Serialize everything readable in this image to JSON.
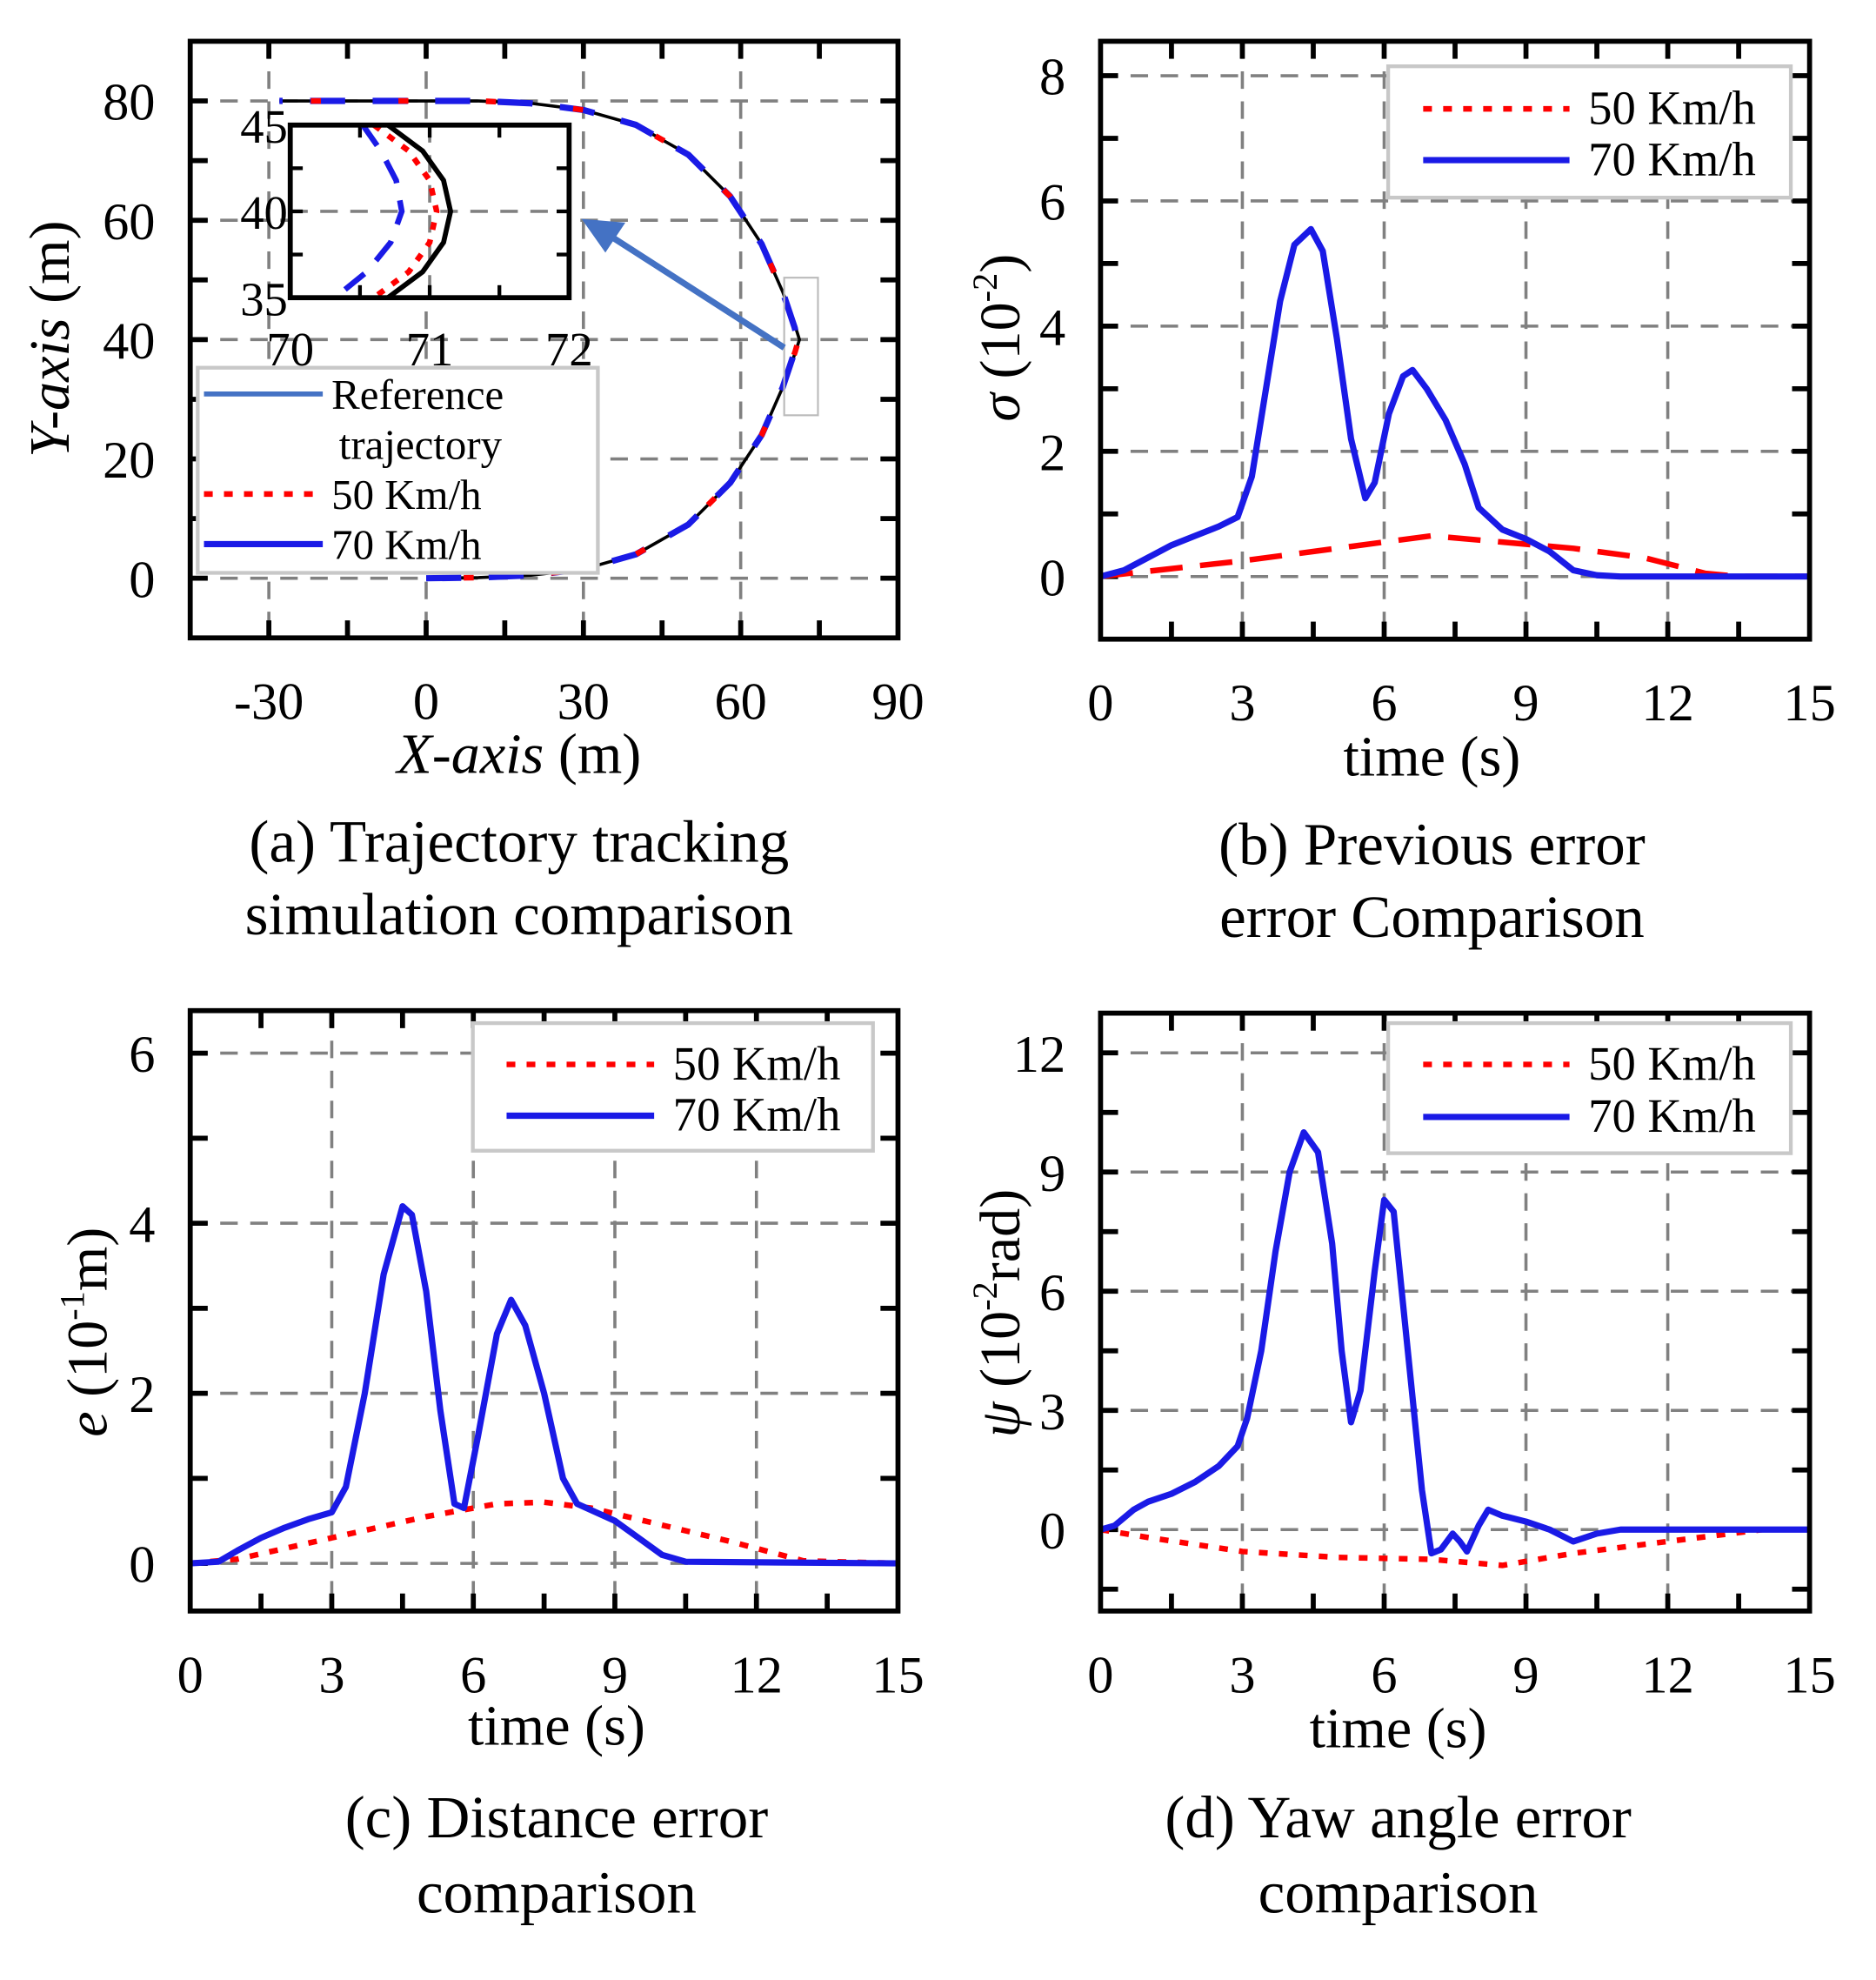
{
  "colors": {
    "red": "#ff0000",
    "blue": "#1a1ae6",
    "reference": "#000000",
    "ref_legend": "#4472c4",
    "grid": "#808080",
    "arrow": "#4472c4"
  },
  "chart_data": [
    {
      "type": "line",
      "id": "a",
      "caption": [
        "(a) Trajectory tracking",
        "simulation comparison"
      ],
      "xlabel": {
        "italic": "X-axis",
        "rest": " (m)"
      },
      "ylabel": {
        "italic": "Y-axis",
        "rest": " (m)"
      },
      "xlim": [
        -45,
        90
      ],
      "ylim": [
        -10,
        90
      ],
      "xticks": [
        -30,
        0,
        30,
        60,
        90
      ],
      "yticks": [
        0,
        20,
        40,
        60,
        80
      ],
      "xminor": 15,
      "yminor": 10,
      "grid": true,
      "legend": {
        "placement": "center-left",
        "entries": [
          {
            "label": [
              "Reference",
              "trajectory"
            ],
            "style": "ref"
          },
          {
            "label": [
              "50 Km/h"
            ],
            "style": "red"
          },
          {
            "label": [
              "70 Km/h"
            ],
            "style": "blue"
          }
        ]
      },
      "series": [
        {
          "name": "Reference trajectory",
          "style": "ref",
          "x": [
            0,
            10,
            20,
            30,
            40,
            50,
            58,
            64,
            68,
            70.5,
            71.2,
            70.5,
            68,
            64,
            58,
            50,
            40,
            30,
            20,
            10,
            0,
            -28
          ],
          "y": [
            0,
            0.1,
            0.5,
            1.5,
            4,
            9,
            16,
            24,
            32,
            38,
            40,
            42,
            48,
            56,
            64,
            71,
            76,
            78.5,
            79.6,
            80,
            80,
            80
          ]
        },
        {
          "name": "70 Km/h",
          "style": "blue",
          "x": [
            0,
            10,
            20,
            30,
            40,
            50,
            58,
            64,
            68,
            70.3,
            70.8,
            70.3,
            68,
            64,
            58,
            50,
            40,
            30,
            20,
            10,
            0,
            -28
          ],
          "y": [
            0,
            0.1,
            0.5,
            1.5,
            4,
            9,
            16,
            24,
            32,
            38,
            40,
            42,
            48,
            56,
            64,
            71,
            76,
            78.5,
            79.6,
            80,
            80,
            80
          ]
        },
        {
          "name": "50 Km/h",
          "style": "red",
          "x": [
            0,
            10,
            20,
            30,
            40,
            50,
            58,
            64,
            68,
            70.4,
            71.05,
            70.4,
            68,
            64,
            58,
            50,
            40,
            30,
            20,
            10,
            0,
            -28
          ],
          "y": [
            0,
            0.1,
            0.5,
            1.5,
            4,
            9,
            16,
            24,
            32,
            38,
            40,
            42,
            48,
            56,
            64,
            71,
            76,
            78.5,
            79.6,
            80,
            80,
            80
          ]
        }
      ],
      "inset": {
        "xlim": [
          70,
          72
        ],
        "ylim": [
          35,
          45
        ],
        "xticks": [
          70,
          71,
          72
        ],
        "yticks": [
          35,
          40,
          45
        ],
        "series": [
          {
            "name": "Reference trajectory",
            "style": "ref",
            "x": [
              70.7,
              70.95,
              71.1,
              71.15,
              71.1,
              70.95,
              70.7
            ],
            "y": [
              45,
              43.5,
              41.8,
              40,
              38.2,
              36.5,
              35
            ]
          },
          {
            "name": "50 Km/h",
            "style": "red",
            "x": [
              70.6,
              70.85,
              71.0,
              71.05,
              71.0,
              70.85,
              70.6
            ],
            "y": [
              45,
              43.5,
              41.8,
              40,
              38.2,
              36.5,
              35
            ]
          },
          {
            "name": "70 Km/h",
            "style": "blue",
            "x": [
              70.52,
              70.65,
              70.76,
              70.8,
              70.72,
              70.55,
              70.32
            ],
            "y": [
              45,
              43.5,
              41.8,
              40,
              38.2,
              36.5,
              35
            ]
          }
        ]
      }
    },
    {
      "type": "line",
      "id": "b",
      "caption": [
        "(b) Previous error",
        "error Comparison"
      ],
      "xlabel": {
        "italic": "",
        "rest": "time (s)"
      },
      "ylabel": {
        "sym": "σ",
        "pre": " (10",
        "sup": "-2",
        "post": ")"
      },
      "xlim": [
        0,
        15
      ],
      "ylim": [
        -1,
        8.55
      ],
      "xticks": [
        0,
        3,
        6,
        9,
        12,
        15
      ],
      "yticks": [
        0,
        2,
        4,
        6,
        8
      ],
      "xminor": 1.5,
      "yminor": 1,
      "grid": true,
      "legend": {
        "placement": "top-right",
        "entries": [
          {
            "label": [
              "50 Km/h"
            ],
            "style": "red"
          },
          {
            "label": [
              "70 Km/h"
            ],
            "style": "blue"
          }
        ]
      },
      "series": [
        {
          "name": "50 Km/h",
          "style": "redlong",
          "x": [
            0,
            3,
            5,
            7,
            8.5,
            10,
            11.5,
            12.8,
            13.5,
            15
          ],
          "y": [
            0,
            0.25,
            0.45,
            0.65,
            0.55,
            0.45,
            0.3,
            0.05,
            0,
            0
          ]
        },
        {
          "name": "70 Km/h",
          "style": "blue",
          "x": [
            0,
            0.5,
            1,
            1.5,
            2,
            2.5,
            2.9,
            3.2,
            3.5,
            3.8,
            4.1,
            4.45,
            4.7,
            5,
            5.3,
            5.6,
            5.8,
            6.1,
            6.4,
            6.6,
            6.9,
            7.3,
            7.7,
            8,
            8.5,
            9,
            9.5,
            10,
            10.5,
            11,
            15
          ],
          "y": [
            0,
            0.1,
            0.3,
            0.5,
            0.65,
            0.8,
            0.95,
            1.6,
            3,
            4.4,
            5.3,
            5.55,
            5.2,
            3.8,
            2.2,
            1.25,
            1.5,
            2.6,
            3.2,
            3.3,
            3,
            2.5,
            1.8,
            1.1,
            0.75,
            0.6,
            0.4,
            0.1,
            0.02,
            0,
            0
          ]
        }
      ]
    },
    {
      "type": "line",
      "id": "c",
      "caption": [
        "(c) Distance error",
        "comparison"
      ],
      "xlabel": {
        "italic": "",
        "rest": "time (s)"
      },
      "ylabel": {
        "sym": "e",
        "pre": " (10",
        "sup": "-1",
        "post": "m)"
      },
      "xlim": [
        0,
        15
      ],
      "ylim": [
        -0.56,
        6.5
      ],
      "xticks": [
        0,
        3,
        6,
        9,
        12,
        15
      ],
      "yticks": [
        0,
        2,
        4,
        6
      ],
      "xminor": 1.5,
      "yminor": 1,
      "grid": true,
      "legend": {
        "placement": "top-right",
        "entries": [
          {
            "label": [
              "50 Km/h"
            ],
            "style": "red"
          },
          {
            "label": [
              "70 Km/h"
            ],
            "style": "blue"
          }
        ]
      },
      "series": [
        {
          "name": "50 Km/h",
          "style": "red",
          "x": [
            0,
            1,
            3,
            5,
            6.5,
            7.5,
            8.5,
            10,
            11.5,
            13,
            15
          ],
          "y": [
            0,
            0.05,
            0.3,
            0.55,
            0.7,
            0.72,
            0.65,
            0.45,
            0.25,
            0.03,
            0
          ]
        },
        {
          "name": "70 Km/h",
          "style": "blue",
          "x": [
            0,
            0.6,
            1,
            1.5,
            2,
            2.5,
            3,
            3.3,
            3.7,
            4.1,
            4.5,
            4.7,
            5,
            5.3,
            5.6,
            5.8,
            6.1,
            6.5,
            6.8,
            7.1,
            7.5,
            7.9,
            8.2,
            9,
            9.5,
            10,
            10.5,
            15
          ],
          "y": [
            0,
            0.02,
            0.15,
            0.3,
            0.42,
            0.52,
            0.6,
            0.9,
            2,
            3.4,
            4.2,
            4.1,
            3.2,
            1.8,
            0.7,
            0.65,
            1.5,
            2.7,
            3.1,
            2.8,
            2,
            1,
            0.7,
            0.5,
            0.3,
            0.1,
            0.02,
            0
          ]
        }
      ]
    },
    {
      "type": "line",
      "id": "d",
      "caption": [
        "(d) Yaw angle error",
        "comparison"
      ],
      "xlabel": {
        "italic": "",
        "rest": "time (s)"
      },
      "ylabel": {
        "sym": "ψ",
        "pre": " (10",
        "sup": "-2",
        "post": "rad)"
      },
      "xlim": [
        0,
        15
      ],
      "ylim": [
        -2.05,
        13
      ],
      "xticks": [
        0,
        3,
        6,
        9,
        12,
        15
      ],
      "yticks": [
        0,
        3,
        6,
        9,
        12
      ],
      "xminor": 1.5,
      "yminor": 1.5,
      "grid": true,
      "legend": {
        "placement": "top-right",
        "entries": [
          {
            "label": [
              "50 Km/h"
            ],
            "style": "red"
          },
          {
            "label": [
              "70 Km/h"
            ],
            "style": "blue"
          }
        ]
      },
      "series": [
        {
          "name": "50 Km/h",
          "style": "red",
          "x": [
            0,
            1,
            3,
            5,
            7,
            8.5,
            10,
            12,
            14,
            15
          ],
          "y": [
            0,
            -0.2,
            -0.55,
            -0.7,
            -0.75,
            -0.9,
            -0.6,
            -0.3,
            0,
            0
          ]
        },
        {
          "name": "70 Km/h",
          "style": "blue",
          "x": [
            0,
            0.3,
            0.7,
            1,
            1.5,
            2,
            2.5,
            2.9,
            3.1,
            3.4,
            3.7,
            4,
            4.3,
            4.6,
            4.9,
            5.1,
            5.3,
            5.5,
            5.8,
            6,
            6.2,
            6.5,
            6.8,
            7,
            7.2,
            7.45,
            7.6,
            7.75,
            8,
            8.2,
            8.5,
            9,
            9.5,
            10,
            10.5,
            11,
            15
          ],
          "y": [
            0,
            0.1,
            0.5,
            0.7,
            0.9,
            1.2,
            1.6,
            2.1,
            2.8,
            4.5,
            7,
            9,
            10,
            9.5,
            7.2,
            4.5,
            2.7,
            3.5,
            6.5,
            8.3,
            8,
            4.5,
            1,
            -0.6,
            -0.5,
            -0.1,
            -0.3,
            -0.55,
            0.1,
            0.5,
            0.35,
            0.2,
            0,
            -0.3,
            -0.1,
            0,
            0
          ]
        }
      ]
    }
  ]
}
